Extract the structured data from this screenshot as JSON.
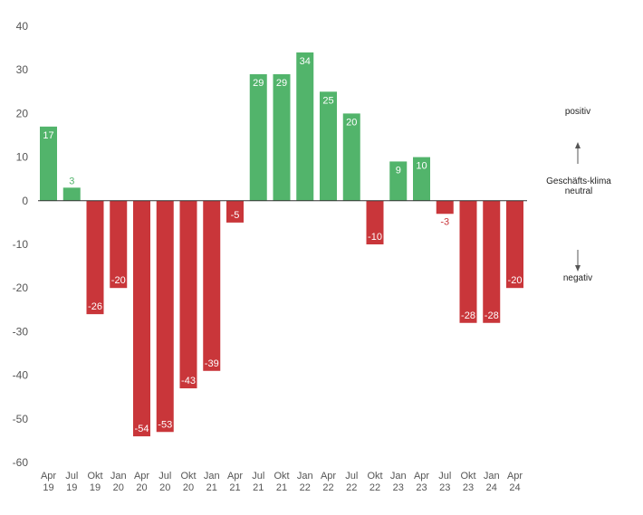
{
  "chart_data": {
    "type": "bar",
    "categories": [
      [
        "Apr",
        "19"
      ],
      [
        "Jul",
        "19"
      ],
      [
        "Okt",
        "19"
      ],
      [
        "Jan",
        "20"
      ],
      [
        "Apr",
        "20"
      ],
      [
        "Jul",
        "20"
      ],
      [
        "Okt",
        "20"
      ],
      [
        "Jan",
        "21"
      ],
      [
        "Apr",
        "21"
      ],
      [
        "Jul",
        "21"
      ],
      [
        "Okt",
        "21"
      ],
      [
        "Jan",
        "22"
      ],
      [
        "Apr",
        "22"
      ],
      [
        "Jul",
        "22"
      ],
      [
        "Okt",
        "22"
      ],
      [
        "Jan",
        "23"
      ],
      [
        "Apr",
        "23"
      ],
      [
        "Jul",
        "23"
      ],
      [
        "Okt",
        "23"
      ],
      [
        "Jan",
        "24"
      ],
      [
        "Apr",
        "24"
      ]
    ],
    "values": [
      17,
      3,
      -26,
      -20,
      -54,
      -53,
      -43,
      -39,
      -5,
      29,
      29,
      34,
      25,
      20,
      -10,
      9,
      10,
      -3,
      -28,
      -28,
      -20
    ],
    "ylim": [
      -60,
      40
    ],
    "yticks": [
      40,
      30,
      20,
      10,
      0,
      -10,
      -20,
      -30,
      -40,
      -50,
      -60
    ],
    "grid": false,
    "colors": {
      "positive": "#52b46b",
      "negative": "#c9363a",
      "axis": "#333333",
      "arrow": "#555555"
    }
  },
  "legend": {
    "positive": "positiv",
    "neutral_line1": "Geschäfts-klima",
    "neutral_line2": "neutral",
    "negative": "negativ"
  }
}
